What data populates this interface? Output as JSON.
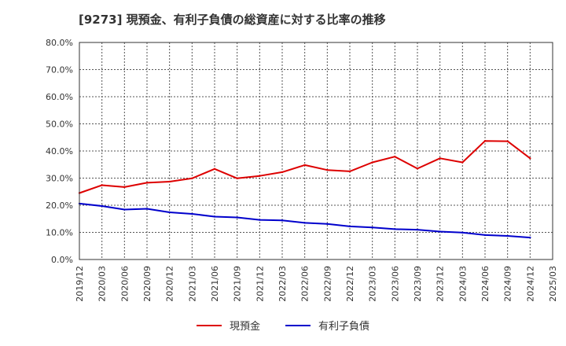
{
  "title": "[9273]  現預金、有利子負債の総資産に対する比率の推移",
  "colors": {
    "cash": "#dd0000",
    "debt": "#0000cc",
    "grid": "#555555",
    "axis": "#333333"
  },
  "chart_data": {
    "type": "line",
    "title": "[9273]  現預金、有利子負債の総資産に対する比率の推移",
    "xlabel": "",
    "ylabel": "",
    "ylim": [
      0,
      80
    ],
    "grid": true,
    "legend_position": "bottom",
    "y_ticks": [
      "0.0%",
      "10.0%",
      "20.0%",
      "30.0%",
      "40.0%",
      "50.0%",
      "60.0%",
      "70.0%",
      "80.0%"
    ],
    "x": [
      "2019/12",
      "2020/03",
      "2020/06",
      "2020/09",
      "2020/12",
      "2021/03",
      "2021/06",
      "2021/09",
      "2021/12",
      "2022/03",
      "2022/06",
      "2022/09",
      "2022/12",
      "2023/03",
      "2023/06",
      "2023/09",
      "2023/12",
      "2024/03",
      "2024/06",
      "2024/09",
      "2024/12",
      "2025/03"
    ],
    "series": [
      {
        "name": "現預金",
        "color": "#dd0000",
        "values": [
          24.5,
          27.4,
          26.7,
          28.3,
          28.7,
          29.9,
          33.4,
          29.9,
          30.8,
          32.2,
          34.8,
          33.0,
          32.5,
          35.8,
          37.9,
          33.5,
          37.3,
          35.8,
          43.7,
          43.6,
          37.3,
          null
        ]
      },
      {
        "name": "有利子負債",
        "color": "#0000cc",
        "values": [
          20.6,
          19.7,
          18.4,
          18.7,
          17.4,
          16.8,
          15.8,
          15.5,
          14.6,
          14.4,
          13.5,
          13.1,
          12.2,
          11.8,
          11.2,
          11.0,
          10.3,
          9.9,
          9.0,
          8.7,
          8.1,
          null
        ]
      }
    ]
  }
}
